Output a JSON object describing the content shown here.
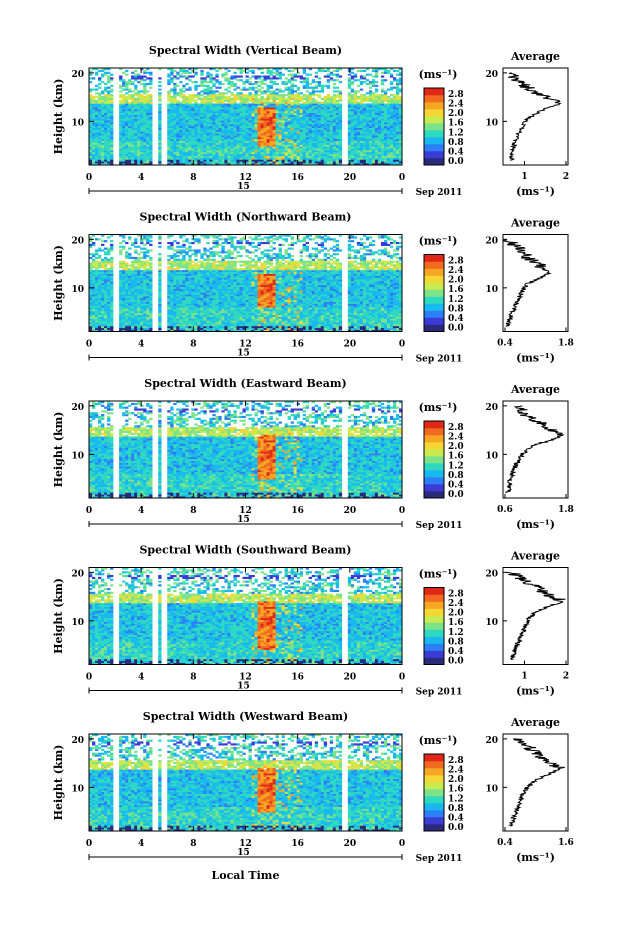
{
  "figure": {
    "date_label": "Sep 2011",
    "day_label": "15",
    "xlabel": "Local Time",
    "colorbar_unit": "(ms⁻¹)",
    "colorbar_ticks": [
      "0.0",
      "0.4",
      "0.8",
      "1.2",
      "1.6",
      "2.0",
      "2.4",
      "2.8"
    ],
    "colorbar_colors": [
      "#2a2a7a",
      "#3b3bd6",
      "#2c7ff5",
      "#19b9ef",
      "#2fd9c0",
      "#7de389",
      "#c9eb4f",
      "#f5d635",
      "#f5a623",
      "#f26a1f",
      "#e02818"
    ]
  },
  "chart_data": [
    {
      "type": "heatmap",
      "title": "Spectral Width (Vertical Beam)",
      "ylabel": "Height (km)",
      "x_ticks": [
        "0",
        "4",
        "8",
        "12",
        "16",
        "20",
        "0"
      ],
      "y_ticks": [
        "20",
        "10"
      ],
      "xlim": [
        0,
        24
      ],
      "ylim": [
        1,
        21
      ],
      "data_gaps_hours": [
        2.0,
        5.0,
        5.7,
        19.6
      ],
      "enhanced_region": {
        "x": [
          13.0,
          14.2
        ],
        "y": [
          5,
          13
        ],
        "value": 2.8
      },
      "profile": {
        "title": "Average",
        "xlabel": "(ms⁻¹)",
        "x_ticks": [
          "1",
          "2"
        ],
        "y_ticks": [
          "20",
          "10"
        ],
        "xlim": [
          0.4,
          2.0
        ],
        "heights": [
          2,
          4,
          6,
          8,
          10,
          11,
          12,
          13,
          13.5,
          14,
          15,
          16,
          17,
          18,
          19,
          20
        ],
        "values": [
          0.6,
          0.65,
          0.7,
          0.8,
          0.95,
          1.1,
          1.3,
          1.55,
          1.8,
          1.7,
          1.45,
          1.2,
          1.0,
          0.85,
          0.7,
          0.6
        ]
      }
    },
    {
      "type": "heatmap",
      "title": "Spectral Width (Northward Beam)",
      "ylabel": "Height (km)",
      "x_ticks": [
        "0",
        "4",
        "8",
        "12",
        "16",
        "20",
        "0"
      ],
      "y_ticks": [
        "20",
        "10"
      ],
      "xlim": [
        0,
        24
      ],
      "ylim": [
        1,
        21
      ],
      "data_gaps_hours": [
        2.0,
        5.0,
        5.7,
        19.6
      ],
      "enhanced_region": {
        "x": [
          13.0,
          14.2
        ],
        "y": [
          6,
          13
        ],
        "value": 2.6
      },
      "profile": {
        "title": "Average",
        "xlabel": "(ms⁻¹)",
        "x_ticks": [
          "0.4",
          "1.8"
        ],
        "y_ticks": [
          "20",
          "10"
        ],
        "xlim": [
          0.4,
          1.8
        ],
        "heights": [
          2,
          4,
          6,
          8,
          10,
          11,
          12,
          13,
          14,
          15,
          16,
          17,
          18,
          19,
          20
        ],
        "values": [
          0.5,
          0.55,
          0.65,
          0.75,
          0.85,
          0.95,
          1.2,
          1.4,
          1.25,
          1.15,
          0.95,
          0.85,
          0.75,
          0.6,
          0.5
        ]
      }
    },
    {
      "type": "heatmap",
      "title": "Spectral Width (Eastward Beam)",
      "ylabel": "Height (km)",
      "x_ticks": [
        "0",
        "4",
        "8",
        "12",
        "16",
        "20",
        "0"
      ],
      "y_ticks": [
        "20",
        "10"
      ],
      "xlim": [
        0,
        24
      ],
      "ylim": [
        1,
        21
      ],
      "data_gaps_hours": [
        2.0,
        5.0,
        5.7,
        19.6
      ],
      "enhanced_region": {
        "x": [
          13.0,
          14.2
        ],
        "y": [
          5,
          14
        ],
        "value": 2.8
      },
      "profile": {
        "title": "Average",
        "xlabel": "(ms⁻¹)",
        "x_ticks": [
          "0.6",
          "1.8"
        ],
        "y_ticks": [
          "20",
          "10"
        ],
        "xlim": [
          0.6,
          1.8
        ],
        "heights": [
          2,
          4,
          6,
          8,
          10,
          11,
          12,
          13,
          14,
          15,
          16,
          17,
          18,
          19,
          20
        ],
        "values": [
          0.7,
          0.72,
          0.78,
          0.85,
          0.95,
          1.05,
          1.2,
          1.5,
          1.7,
          1.5,
          1.35,
          1.2,
          1.0,
          0.95,
          0.85
        ]
      }
    },
    {
      "type": "heatmap",
      "title": "Spectral Width (Southward Beam)",
      "ylabel": "Height (km)",
      "x_ticks": [
        "0",
        "4",
        "8",
        "12",
        "16",
        "20",
        "0"
      ],
      "y_ticks": [
        "20",
        "10"
      ],
      "xlim": [
        0,
        24
      ],
      "ylim": [
        1,
        21
      ],
      "data_gaps_hours": [
        2.0,
        5.0,
        5.7,
        19.6
      ],
      "enhanced_region": {
        "x": [
          13.0,
          14.2
        ],
        "y": [
          4,
          14
        ],
        "value": 2.8
      },
      "profile": {
        "title": "Average",
        "xlabel": "(ms⁻¹)",
        "x_ticks": [
          "1",
          "2"
        ],
        "y_ticks": [
          "20",
          "10"
        ],
        "xlim": [
          0.4,
          2.0
        ],
        "heights": [
          2,
          4,
          6,
          8,
          10,
          11,
          12,
          13,
          14,
          15,
          16,
          17,
          18,
          19,
          20
        ],
        "values": [
          0.6,
          0.7,
          0.8,
          0.9,
          1.0,
          1.1,
          1.25,
          1.5,
          1.9,
          1.6,
          1.4,
          1.2,
          1.0,
          0.8,
          0.6
        ]
      }
    },
    {
      "type": "heatmap",
      "title": "Spectral Width (Westward Beam)",
      "ylabel": "Height (km)",
      "x_ticks": [
        "0",
        "4",
        "8",
        "12",
        "16",
        "20",
        "0"
      ],
      "y_ticks": [
        "20",
        "10"
      ],
      "xlim": [
        0,
        24
      ],
      "ylim": [
        1,
        21
      ],
      "data_gaps_hours": [
        2.0,
        5.0,
        5.7,
        19.6
      ],
      "enhanced_region": {
        "x": [
          13.0,
          14.2
        ],
        "y": [
          5,
          14
        ],
        "value": 2.8
      },
      "profile": {
        "title": "Average",
        "xlabel": "(ms⁻¹)",
        "x_ticks": [
          "0.4",
          "1.6"
        ],
        "y_ticks": [
          "20",
          "10"
        ],
        "xlim": [
          0.4,
          1.6
        ],
        "heights": [
          2,
          4,
          6,
          8,
          10,
          11,
          12,
          13,
          14,
          15,
          16,
          17,
          18,
          19,
          20
        ],
        "values": [
          0.55,
          0.6,
          0.68,
          0.75,
          0.85,
          0.95,
          1.1,
          1.3,
          1.45,
          1.3,
          1.1,
          1.0,
          0.9,
          0.8,
          0.7
        ]
      }
    }
  ]
}
